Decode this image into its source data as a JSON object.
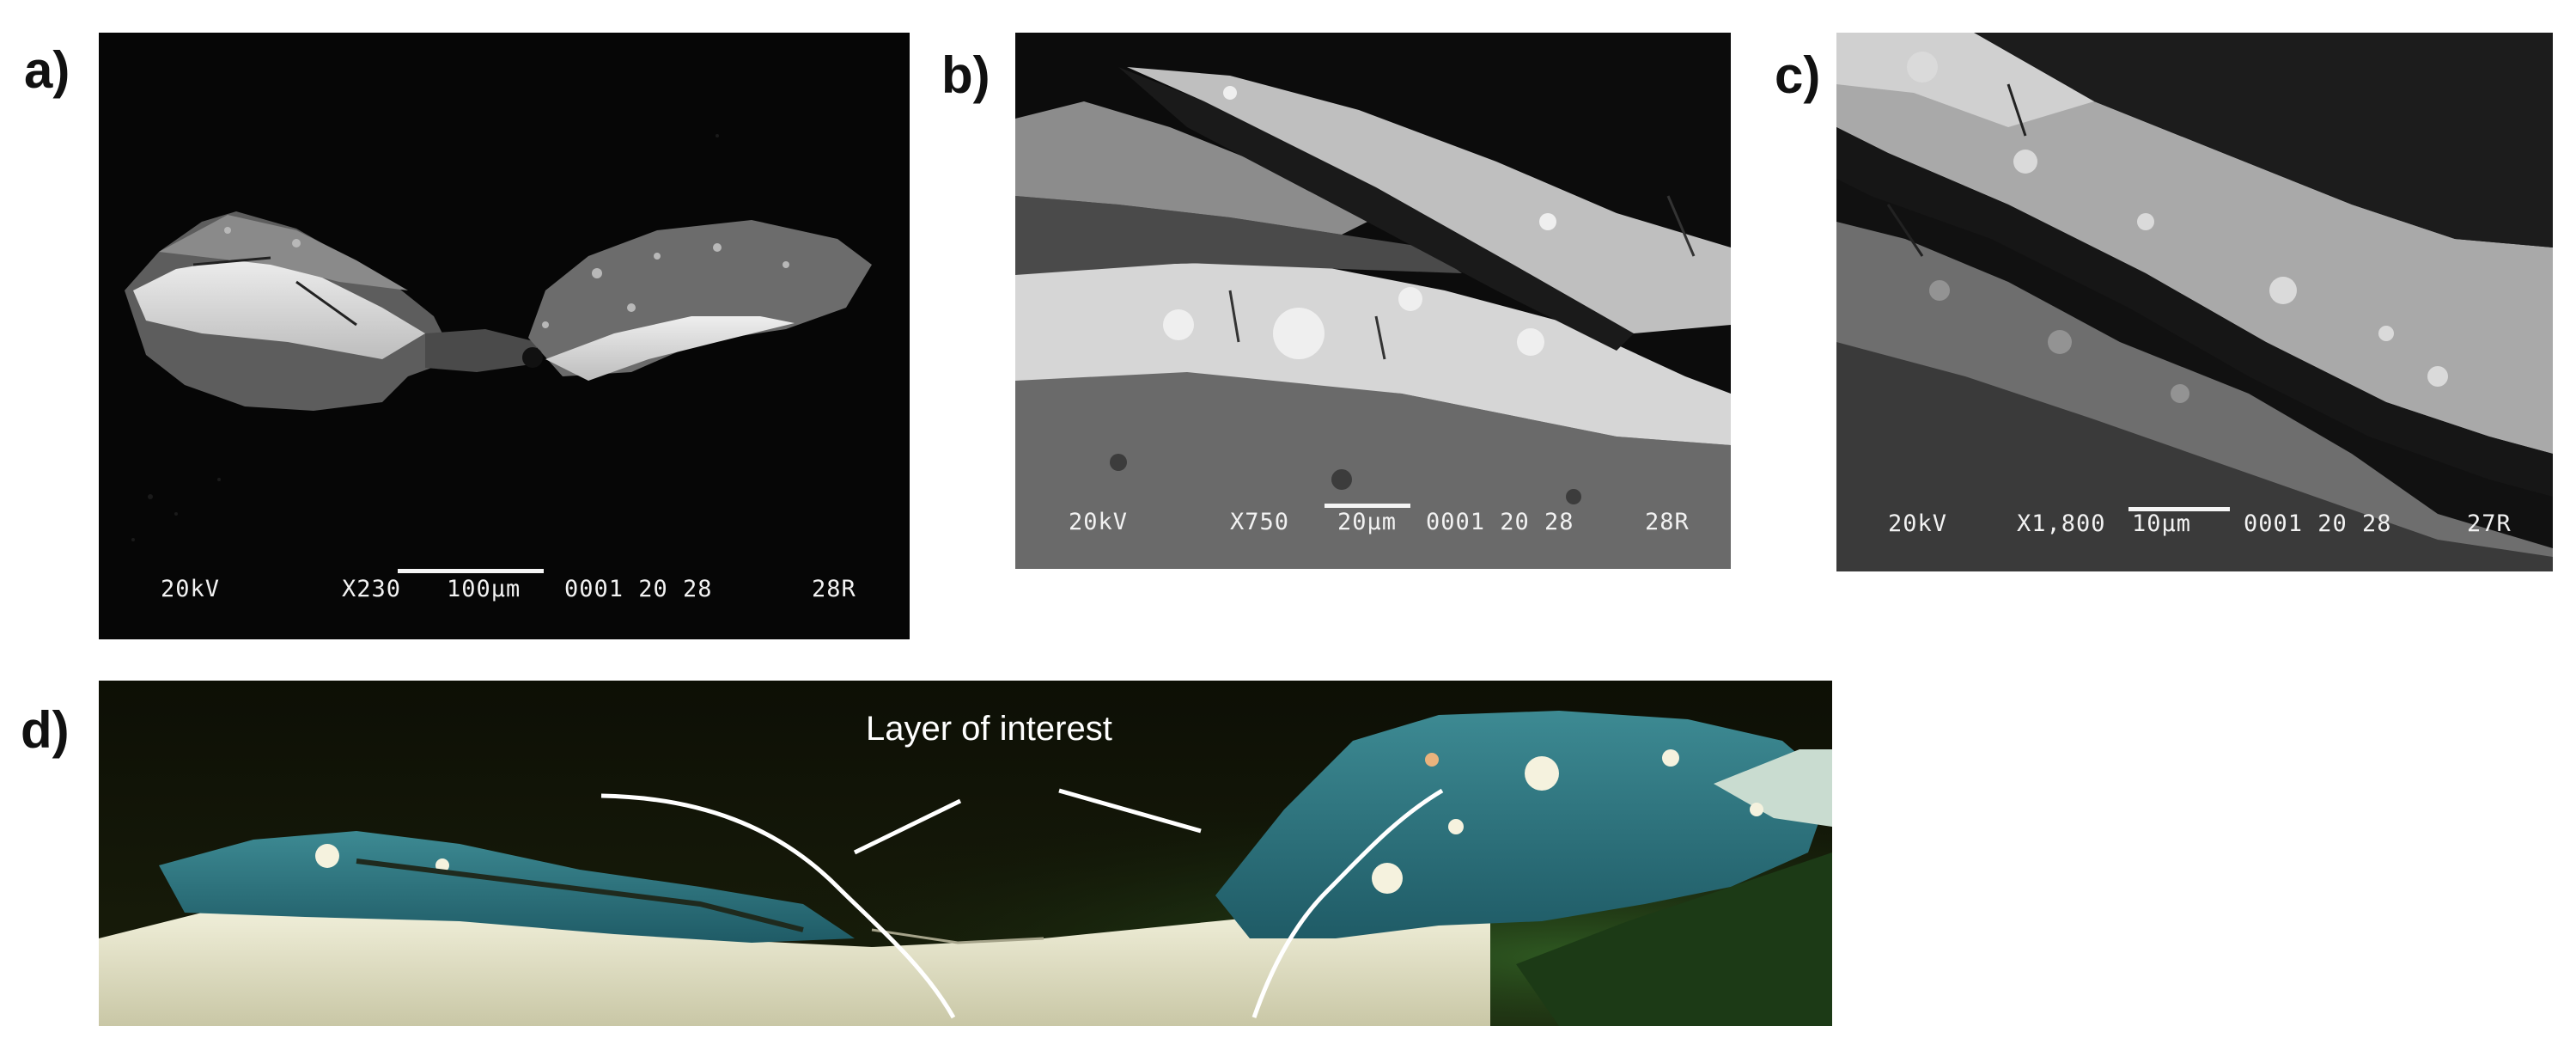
{
  "figure": {
    "panels": [
      {
        "id": "a",
        "label": "a)",
        "type": "sem-micrograph",
        "databar": {
          "voltage": "20kV",
          "magnification": "X230",
          "scale": "100µm",
          "image_no": "0001 20 28",
          "sample": "28R"
        }
      },
      {
        "id": "b",
        "label": "b)",
        "type": "sem-micrograph",
        "databar": {
          "voltage": "20kV",
          "magnification": "X750",
          "scale": "20µm",
          "image_no": "0001 20 28",
          "sample": "28R"
        }
      },
      {
        "id": "c",
        "label": "c)",
        "type": "sem-micrograph",
        "databar": {
          "voltage": "20kV",
          "magnification": "X1,800",
          "scale": "10µm",
          "image_no": "0001 20 28",
          "sample": "27R"
        }
      },
      {
        "id": "d",
        "label": "d)",
        "type": "optical-micrograph",
        "annotation": "Layer of interest"
      }
    ]
  }
}
